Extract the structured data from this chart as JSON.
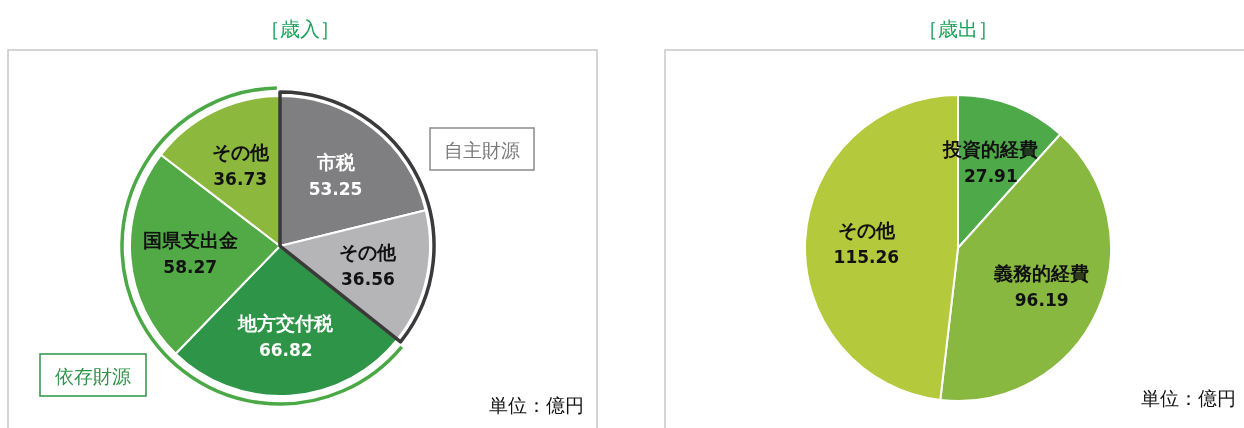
{
  "chart_data": [
    {
      "type": "pie",
      "title": "［歳入］",
      "categories": [
        "市税",
        "その他",
        "地方交付税",
        "国県支出金",
        "その他"
      ],
      "values": [
        53.25,
        36.56,
        66.82,
        58.27,
        36.73
      ],
      "colors": [
        "#7f7f81",
        "#b5b5b7",
        "#2e9447",
        "#52aa46",
        "#8cb83e"
      ],
      "data_labels": true,
      "annotations": [
        "自主財源",
        "依存財源",
        "単位：億円"
      ]
    },
    {
      "type": "pie",
      "title": "［歳出］",
      "categories": [
        "投資的経費",
        "義務的経費",
        "その他"
      ],
      "values": [
        27.91,
        96.19,
        115.26
      ],
      "colors": [
        "#4ea949",
        "#88b840",
        "#b5c93d"
      ],
      "data_labels": true,
      "annotations": [
        "単位：億円"
      ]
    }
  ]
}
